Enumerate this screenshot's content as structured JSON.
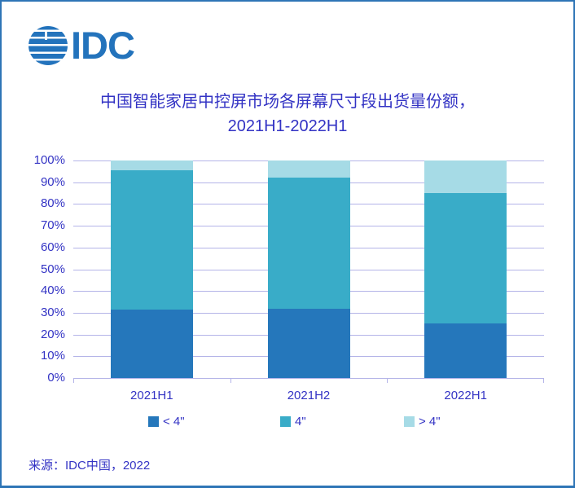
{
  "logo": {
    "text": "IDC",
    "globe_icon": "striped-globe"
  },
  "header": {
    "title_line1": "中国智能家居中控屏市场各屏幕尺寸段出货量份额，",
    "title_line2": "2021H1-2022H1"
  },
  "source_text": "来源：IDC中国，2022",
  "colors": {
    "frame_border": "#2E75B6",
    "text_blue": "#3333C4",
    "gridline": "#B4B4E8",
    "logo_blue": "#2373BC"
  },
  "chart_data": {
    "type": "bar",
    "stacked": true,
    "title": "中国智能家居中控屏市场各屏幕尺寸段出货量份额，2021H1-2022H1",
    "categories": [
      "2021H1",
      "2021H2",
      "2022H1"
    ],
    "series": [
      {
        "name": "< 4\"",
        "color": "#2577BB",
        "values": [
          31.5,
          32,
          25
        ]
      },
      {
        "name": "4\"",
        "color": "#39ACC8",
        "values": [
          64,
          60,
          60
        ]
      },
      {
        "name": "> 4\"",
        "color": "#A6DBE6",
        "values": [
          4.5,
          8,
          15
        ]
      }
    ],
    "xlabel": "",
    "ylabel": "",
    "ylim": [
      0,
      100
    ],
    "ytick_step": 10,
    "ytick_format": "percent",
    "ytick_labels": [
      "0%",
      "10%",
      "20%",
      "30%",
      "40%",
      "50%",
      "60%",
      "70%",
      "80%",
      "90%",
      "100%"
    ],
    "grid": true,
    "legend_position": "bottom",
    "legend_entries": [
      "< 4\"",
      "4\"",
      "> 4\""
    ]
  }
}
